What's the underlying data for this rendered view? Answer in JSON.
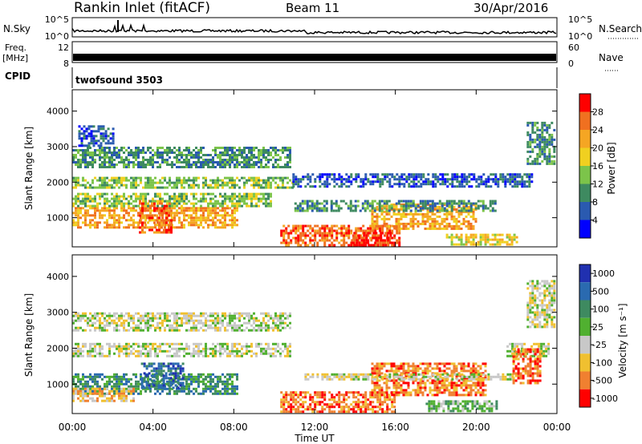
{
  "header": {
    "station": "Rankin Inlet (fitACF)",
    "beam": "Beam 11",
    "date": "30/Apr/2016"
  },
  "nsky_panel": {
    "left_label": "N.Sky",
    "right_label": "N.Search",
    "left_ticks": [
      "10^5",
      "10^0"
    ],
    "right_ticks": [
      "10^5",
      "10^0"
    ]
  },
  "freq_panel": {
    "left_label_1": "Freq.",
    "left_label_2": "[MHz]",
    "right_label": "Nave",
    "left_ticks": [
      "12",
      "8"
    ],
    "right_ticks": [
      "60",
      "0"
    ]
  },
  "cpid_panel": {
    "label": "CPID",
    "value": "twofsound 3503"
  },
  "colors": {
    "background": "#ffffff",
    "axis": "#000000",
    "ground_scatter": "#c8c8c8"
  },
  "chart_data": [
    {
      "type": "heatmap",
      "title": "Power",
      "xlabel": "Time UT",
      "ylabel": "Slant Range [km]",
      "x_range": [
        "00:00",
        "24:00"
      ],
      "y_range_km": [
        180,
        4600
      ],
      "x_ticks": [
        "00:00",
        "04:00",
        "08:00",
        "12:00",
        "16:00",
        "20:00",
        "00:00"
      ],
      "y_ticks": [
        "1000",
        "2000",
        "3000",
        "4000"
      ],
      "colorbar": {
        "label": "Power [dB]",
        "ticks": [
          "4",
          "8",
          "12",
          "16",
          "20",
          "24",
          "28"
        ],
        "colors": [
          "#0000ff",
          "#2a5ab0",
          "#3e8a60",
          "#7cc44a",
          "#f0d020",
          "#f5a623",
          "#f07020",
          "#ff0000"
        ]
      },
      "regions": [
        {
          "t0": 0.0,
          "t1": 8.2,
          "r0": 700,
          "r1": 1300,
          "level": 5
        },
        {
          "t0": 3.3,
          "t1": 4.9,
          "r0": 600,
          "r1": 1500,
          "level": 6
        },
        {
          "t0": 0.0,
          "t1": 9.8,
          "r0": 1300,
          "r1": 1700,
          "level": 3
        },
        {
          "t0": 0.0,
          "t1": 10.9,
          "r0": 1850,
          "r1": 2150,
          "level": 3
        },
        {
          "t0": 0.0,
          "t1": 10.8,
          "r0": 2450,
          "r1": 3000,
          "level": 2
        },
        {
          "t0": 10.3,
          "t1": 16.2,
          "r0": 250,
          "r1": 800,
          "level": 6
        },
        {
          "t0": 13.8,
          "t1": 15.8,
          "r0": 250,
          "r1": 600,
          "level": 7
        },
        {
          "t0": 14.8,
          "t1": 20.0,
          "r0": 700,
          "r1": 1400,
          "level": 5
        },
        {
          "t0": 18.5,
          "t1": 22.0,
          "r0": 250,
          "r1": 550,
          "level": 4
        },
        {
          "t0": 10.9,
          "t1": 22.8,
          "r0": 1850,
          "r1": 2250,
          "level": 1
        },
        {
          "t0": 11.0,
          "t1": 21.0,
          "r0": 1200,
          "r1": 1500,
          "level": 2
        },
        {
          "t0": 22.5,
          "t1": 23.9,
          "r0": 2500,
          "r1": 3700,
          "level": 2
        },
        {
          "t0": 0.3,
          "t1": 2.0,
          "r0": 3000,
          "r1": 3600,
          "level": 1
        }
      ]
    },
    {
      "type": "heatmap",
      "title": "Velocity",
      "xlabel": "Time UT",
      "ylabel": "Slant Range [km]",
      "x_range": [
        "00:00",
        "24:00"
      ],
      "y_range_km": [
        180,
        4600
      ],
      "x_ticks": [
        "00:00",
        "04:00",
        "08:00",
        "12:00",
        "16:00",
        "20:00",
        "00:00"
      ],
      "y_ticks": [
        "1000",
        "2000",
        "3000",
        "4000"
      ],
      "colorbar": {
        "label": "Velocity [m s⁻¹]",
        "ticks": [
          "1000",
          "500",
          "100",
          "25",
          "-25",
          "-100",
          "-500",
          "-1000"
        ],
        "colors": [
          "#2030b0",
          "#2a6ab0",
          "#3e8a60",
          "#50b030",
          "#c8c8c8",
          "#f0c030",
          "#f08030",
          "#ff0000"
        ]
      },
      "regions": [
        {
          "t0": 0.0,
          "t1": 8.2,
          "r0": 750,
          "r1": 1300,
          "level": 2
        },
        {
          "t0": 0.0,
          "t1": 3.0,
          "r0": 500,
          "r1": 900,
          "level": 5
        },
        {
          "t0": 3.4,
          "t1": 5.5,
          "r0": 900,
          "r1": 1600,
          "level": 1
        },
        {
          "t0": 0.0,
          "t1": 10.8,
          "r0": 1800,
          "r1": 2150,
          "level": 4
        },
        {
          "t0": 0.0,
          "t1": 10.8,
          "r0": 2500,
          "r1": 3000,
          "level": 4
        },
        {
          "t0": 10.3,
          "t1": 16.0,
          "r0": 250,
          "r1": 800,
          "level": 6
        },
        {
          "t0": 14.8,
          "t1": 20.5,
          "r0": 700,
          "r1": 1600,
          "level": 6
        },
        {
          "t0": 17.5,
          "t1": 21.0,
          "r0": 250,
          "r1": 550,
          "level": 3
        },
        {
          "t0": 11.5,
          "t1": 21.8,
          "r0": 1150,
          "r1": 1300,
          "level": 4
        },
        {
          "t0": 21.5,
          "t1": 23.6,
          "r0": 1800,
          "r1": 2150,
          "level": 4
        },
        {
          "t0": 22.5,
          "t1": 23.9,
          "r0": 2600,
          "r1": 3900,
          "level": 4
        },
        {
          "t0": 21.8,
          "t1": 23.2,
          "r0": 1000,
          "r1": 2000,
          "level": 6
        }
      ]
    }
  ]
}
